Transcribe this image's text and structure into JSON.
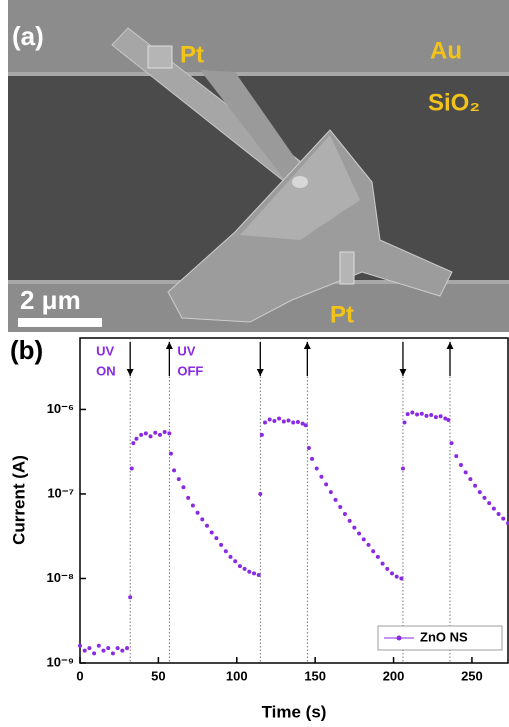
{
  "image_panel": {
    "label": "(a)",
    "pt_top": "Pt",
    "pt_bottom": "Pt",
    "au": "Au",
    "sio2": "SiO₂",
    "scale_bar": "2 μm"
  },
  "chart_data": {
    "type": "scatter",
    "panel_label": "(b)",
    "x_label": "Time (s)",
    "y_label": "Current (A)",
    "xlim": [
      0,
      273
    ],
    "xticks": [
      0,
      50,
      100,
      150,
      200,
      250
    ],
    "ylim": [
      1e-09,
      7e-06
    ],
    "yscale": "log",
    "yticks": [
      {
        "value": 1e-09,
        "label": "10⁻⁹"
      },
      {
        "value": 1e-08,
        "label": "10⁻⁸"
      },
      {
        "value": 1e-07,
        "label": "10⁻⁷"
      },
      {
        "value": 1e-06,
        "label": "10⁻⁶"
      }
    ],
    "legend": "lower right",
    "events": [
      {
        "x": 32,
        "direction": "down",
        "label": [
          "UV",
          "ON"
        ]
      },
      {
        "x": 57,
        "direction": "up",
        "label": [
          "UV",
          "OFF"
        ]
      },
      {
        "x": 115,
        "direction": "down"
      },
      {
        "x": 145,
        "direction": "up"
      },
      {
        "x": 206,
        "direction": "down"
      },
      {
        "x": 236,
        "direction": "up"
      }
    ],
    "series": [
      {
        "name": "ZnO NS",
        "color": "#8a2be2",
        "x": [
          0,
          3,
          6,
          9,
          12,
          15,
          18,
          21,
          24,
          27,
          30,
          32,
          33,
          34,
          36,
          39,
          42,
          45,
          48,
          51,
          54,
          57,
          58,
          60,
          63,
          66,
          69,
          72,
          75,
          78,
          81,
          84,
          87,
          90,
          93,
          96,
          99,
          102,
          105,
          108,
          111,
          114,
          115,
          116,
          118,
          121,
          124,
          127,
          130,
          133,
          136,
          139,
          142,
          144,
          146,
          148,
          151,
          154,
          157,
          160,
          163,
          166,
          169,
          172,
          175,
          178,
          181,
          184,
          187,
          190,
          193,
          196,
          199,
          202,
          205,
          206,
          207,
          209,
          212,
          215,
          218,
          221,
          224,
          227,
          230,
          233,
          235,
          237,
          240,
          243,
          246,
          249,
          252,
          255,
          258,
          261,
          264,
          267,
          270,
          273
        ],
        "values": [
          1.6e-09,
          1.4e-09,
          1.5e-09,
          1.3e-09,
          1.6e-09,
          1.4e-09,
          1.5e-09,
          1.3e-09,
          1.5e-09,
          1.4e-09,
          1.5e-09,
          6e-09,
          2e-07,
          4e-07,
          4.5e-07,
          5e-07,
          5.2e-07,
          4.8e-07,
          5.3e-07,
          5e-07,
          5.4e-07,
          5.2e-07,
          3e-07,
          1.9e-07,
          1.5e-07,
          1.2e-07,
          9e-08,
          7.3e-08,
          6e-08,
          5e-08,
          4.2e-08,
          3.5e-08,
          3e-08,
          2.5e-08,
          2.1e-08,
          1.8e-08,
          1.6e-08,
          1.4e-08,
          1.3e-08,
          1.2e-08,
          1.15e-08,
          1.1e-08,
          1e-07,
          5e-07,
          7e-07,
          7.6e-07,
          7.3e-07,
          7.8e-07,
          7.2e-07,
          7.4e-07,
          7e-07,
          7.1e-07,
          6.8e-07,
          6.5e-07,
          3.5e-07,
          2.6e-07,
          2e-07,
          1.6e-07,
          1.3e-07,
          1.05e-07,
          8.5e-08,
          7e-08,
          5.8e-08,
          4.8e-08,
          4e-08,
          3.4e-08,
          2.9e-08,
          2.5e-08,
          2.1e-08,
          1.8e-08,
          1.5e-08,
          1.3e-08,
          1.15e-08,
          1.05e-08,
          1e-08,
          2e-07,
          7e-07,
          8.8e-07,
          9.2e-07,
          8.7e-07,
          8.9e-07,
          8.4e-07,
          8.6e-07,
          8.1e-07,
          8.3e-07,
          7.8e-07,
          7.5e-07,
          4e-07,
          2.8e-07,
          2.2e-07,
          1.8e-07,
          1.5e-07,
          1.25e-07,
          1.05e-07,
          9e-08,
          7.8e-08,
          6.7e-08,
          5.8e-08,
          5.1e-08,
          4.5e-08
        ]
      }
    ]
  }
}
